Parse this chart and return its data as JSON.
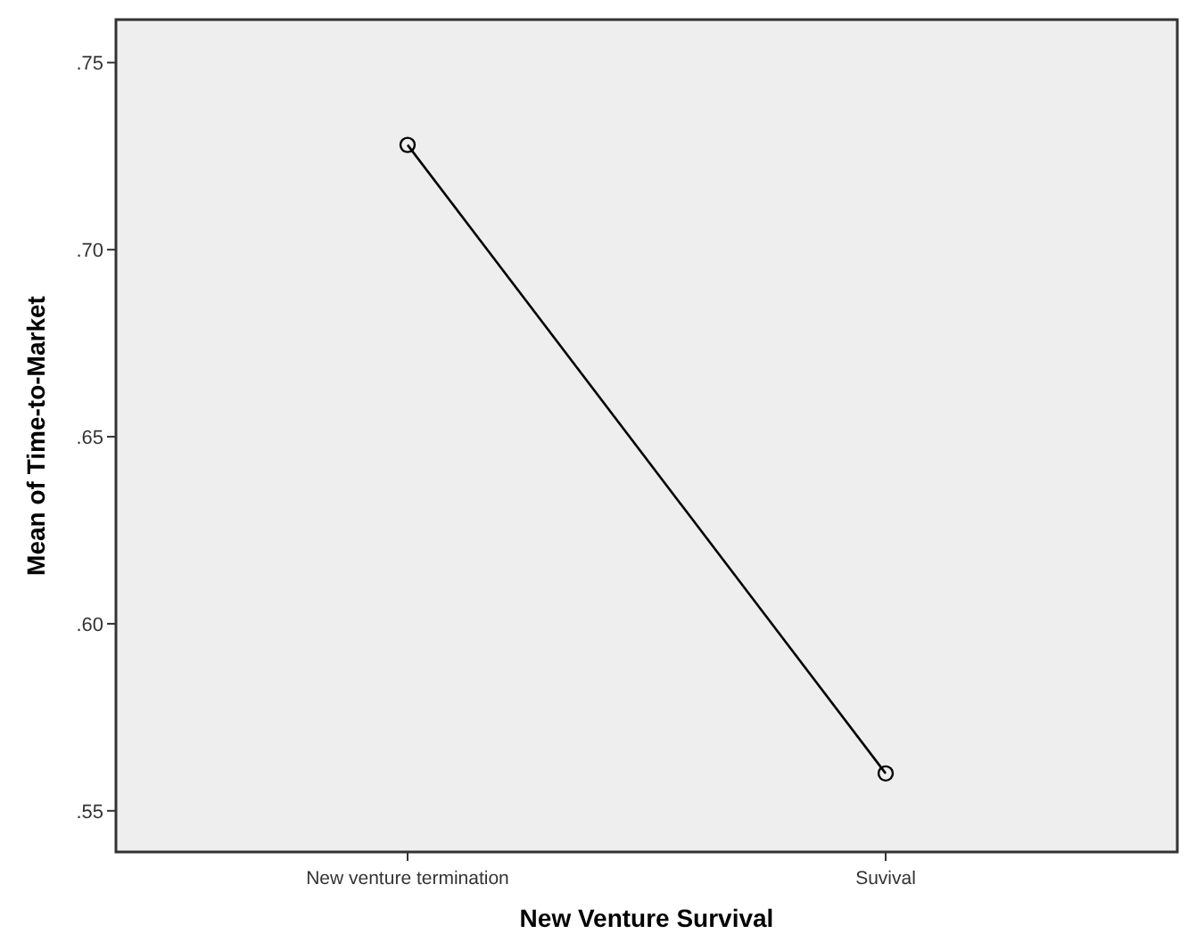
{
  "chart_data": {
    "type": "line",
    "xlabel": "New Venture Survival",
    "ylabel": "Mean of Time-to-Market",
    "categories": [
      "New venture termination",
      "Suvival"
    ],
    "series": [
      {
        "color": "#000000",
        "values": [
          0.728,
          0.56
        ]
      }
    ],
    "ylim": [
      0.539,
      0.7615
    ],
    "yticks": [
      {
        "value": 0.55,
        "label": ".55"
      },
      {
        "value": 0.6,
        "label": ".60"
      },
      {
        "value": 0.65,
        "label": ".65"
      },
      {
        "value": 0.7,
        "label": ".70"
      },
      {
        "value": 0.75,
        "label": ".75"
      }
    ],
    "marker": "circle",
    "grid": false
  }
}
